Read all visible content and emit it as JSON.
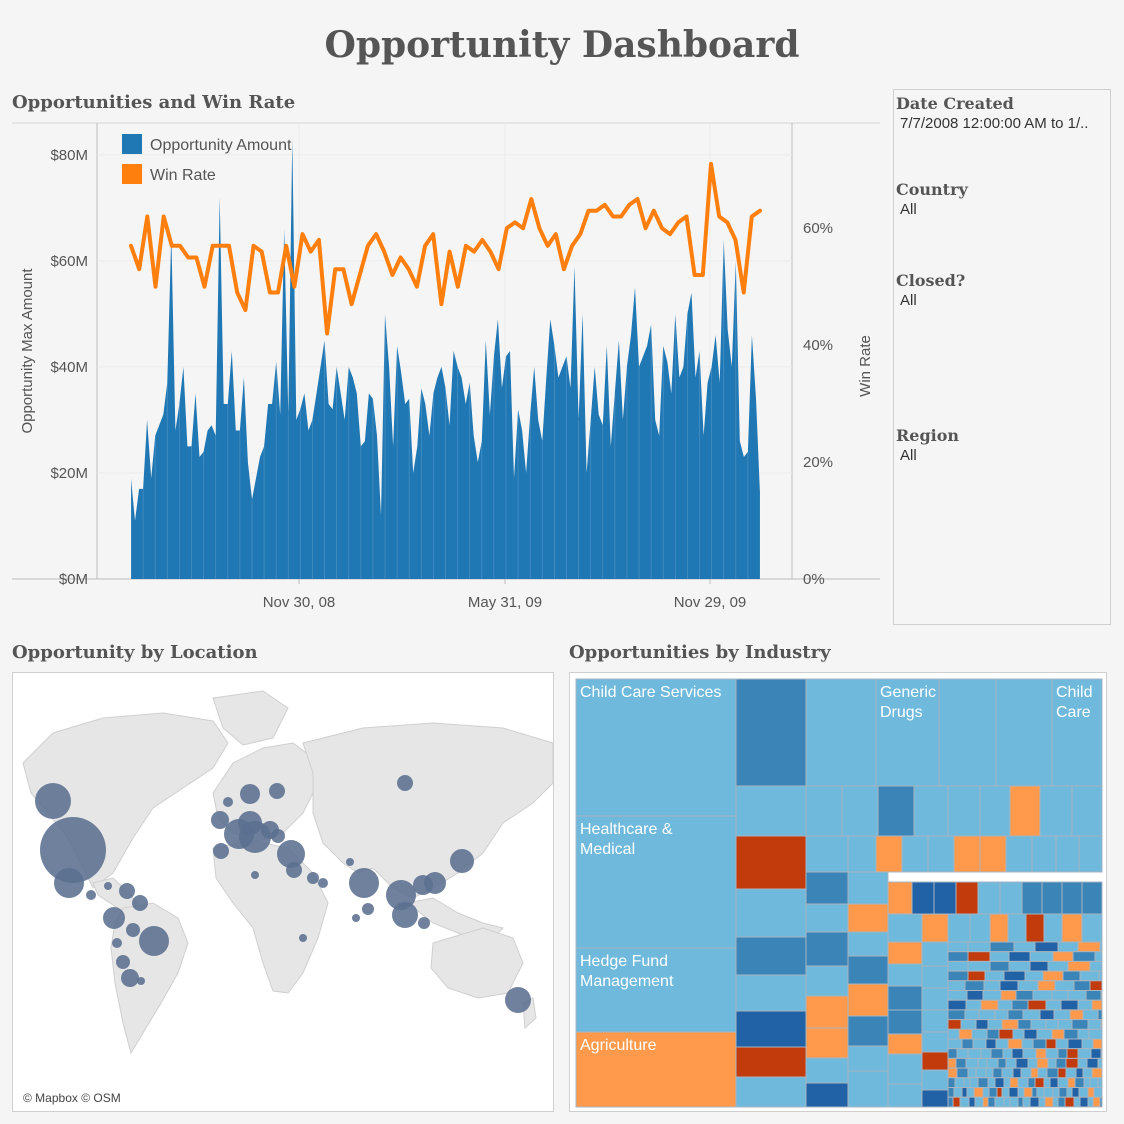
{
  "header": {
    "title": "Opportunity Dashboard"
  },
  "sections": {
    "line_chart_title": "Opportunities and Win Rate",
    "map_title": "Opportunity by Location",
    "treemap_title": "Opportunities by Industry"
  },
  "filters": [
    {
      "label": "Date Created",
      "value": "7/7/2008 12:00:00 AM to 1/.."
    },
    {
      "label": "Country",
      "value": "All"
    },
    {
      "label": "Closed?",
      "value": "All"
    },
    {
      "label": "Region",
      "value": "All"
    }
  ],
  "map": {
    "credit": "© Mapbox © OSM",
    "bubble_color": "#5b6f8f"
  },
  "colors": {
    "amount": "#1f77b4",
    "win_rate": "#ff7f0e",
    "treemap_light": "#6fb9dc",
    "treemap_mid": "#3a84b8",
    "treemap_dark": "#2162a6",
    "treemap_orange": "#ff9a4d",
    "treemap_red": "#c23b0c"
  },
  "chart_data": [
    {
      "type": "area",
      "xlabel": "",
      "ylabel": "Opportunity Max Amount",
      "y2label": "Win Rate",
      "x_ticks": [
        "Nov 30, 08",
        "May 31, 09",
        "Nov 29, 09"
      ],
      "ylim": [
        0,
        86
      ],
      "y_ticks": [
        "$0M",
        "$20M",
        "$40M",
        "$60M",
        "$80M"
      ],
      "y2lim": [
        0,
        78
      ],
      "y2_ticks": [
        "0%",
        "20%",
        "40%",
        "60%"
      ],
      "grid": true,
      "legend_position": "top-left",
      "series": [
        {
          "name": "Opportunity Amount",
          "unit": "$M",
          "values": [
            19,
            11,
            17,
            17,
            30,
            19,
            27,
            29,
            31,
            37,
            65,
            28,
            33,
            40,
            25,
            25,
            35,
            23,
            24,
            28,
            29,
            27,
            72,
            33,
            33,
            43,
            28,
            28,
            38,
            22,
            15,
            19,
            23,
            25,
            33,
            33,
            41,
            31,
            66,
            31,
            83,
            30,
            32,
            35,
            28,
            30,
            35,
            40,
            45,
            33,
            32,
            40,
            35,
            30,
            40,
            38,
            35,
            25,
            26,
            35,
            34,
            27,
            12,
            50,
            40,
            25,
            44,
            39,
            33,
            34,
            20,
            25,
            36,
            33,
            27,
            35,
            38,
            40,
            36,
            29,
            43,
            40,
            38,
            33,
            37,
            27,
            22,
            26,
            45,
            31,
            42,
            49,
            36,
            42,
            43,
            19,
            32,
            28,
            20,
            31,
            40,
            30,
            26,
            38,
            49,
            44,
            38,
            40,
            42,
            36,
            59,
            30,
            50,
            20,
            30,
            40,
            31,
            29,
            44,
            25,
            35,
            45,
            30,
            40,
            46,
            55,
            40,
            42,
            44,
            48,
            30,
            27,
            44,
            41,
            35,
            50,
            38,
            40,
            50,
            54,
            38,
            43,
            27,
            37,
            40,
            46,
            37,
            64,
            47,
            40,
            60,
            26,
            23,
            24,
            46,
            34,
            16
          ]
        },
        {
          "name": "Win Rate",
          "unit": "%",
          "values": [
            57,
            53,
            62,
            50,
            62,
            57,
            57,
            55,
            55,
            50,
            57,
            57,
            57,
            49,
            46,
            57,
            56,
            49,
            49,
            57,
            50,
            59,
            56,
            58,
            42,
            53,
            53,
            47,
            52,
            57,
            59,
            56,
            52,
            55,
            53,
            50,
            57,
            59,
            47,
            56,
            50,
            57,
            56,
            58,
            56,
            53,
            60,
            61,
            60,
            65,
            60,
            57,
            59,
            53,
            57,
            59,
            63,
            63,
            64,
            62,
            62,
            64,
            65,
            60,
            63,
            60,
            59,
            61,
            62,
            52,
            52,
            71,
            62,
            61,
            58,
            49,
            62,
            63
          ]
        }
      ]
    },
    {
      "type": "treemap",
      "labels": [
        "Child Care Services",
        "Healthcare & Medical",
        "Hedge Fund Management",
        "Agriculture",
        "Generic Drugs",
        "Child Care"
      ]
    }
  ]
}
